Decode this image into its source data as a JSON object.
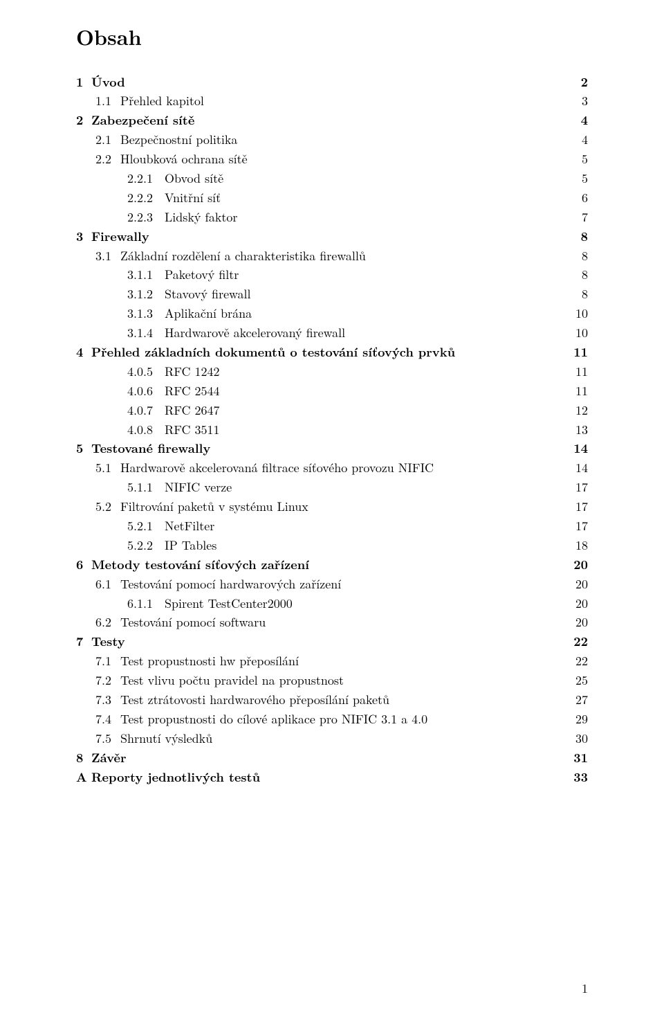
{
  "title": "Obsah",
  "footer_page": "1",
  "entries": [
    {
      "level": 0,
      "num": "1",
      "label": "Úvod",
      "page": "2",
      "bold": true
    },
    {
      "level": 1,
      "num": "1.1",
      "label": "Přehled kapitol",
      "page": "3",
      "bold": false
    },
    {
      "level": 0,
      "num": "2",
      "label": "Zabezpečení sítě",
      "page": "4",
      "bold": true
    },
    {
      "level": 1,
      "num": "2.1",
      "label": "Bezpečnostní politika",
      "page": "4",
      "bold": false
    },
    {
      "level": 1,
      "num": "2.2",
      "label": "Hloubková ochrana sítě",
      "page": "5",
      "bold": false
    },
    {
      "level": 2,
      "num": "2.2.1",
      "label": "Obvod sítě",
      "page": "5",
      "bold": false
    },
    {
      "level": 2,
      "num": "2.2.2",
      "label": "Vnitřní síť",
      "page": "6",
      "bold": false
    },
    {
      "level": 2,
      "num": "2.2.3",
      "label": "Lidský faktor",
      "page": "7",
      "bold": false
    },
    {
      "level": 0,
      "num": "3",
      "label": "Firewally",
      "page": "8",
      "bold": true
    },
    {
      "level": 1,
      "num": "3.1",
      "label": "Základní rozdělení a charakteristika firewallů",
      "page": "8",
      "bold": false
    },
    {
      "level": 2,
      "num": "3.1.1",
      "label": "Paketový filtr",
      "page": "8",
      "bold": false
    },
    {
      "level": 2,
      "num": "3.1.2",
      "label": "Stavový firewall",
      "page": "8",
      "bold": false
    },
    {
      "level": 2,
      "num": "3.1.3",
      "label": "Aplikační brána",
      "page": "10",
      "bold": false
    },
    {
      "level": 2,
      "num": "3.1.4",
      "label": "Hardwarově akcelerovaný firewall",
      "page": "10",
      "bold": false
    },
    {
      "level": 0,
      "num": "4",
      "label": "Přehled základních dokumentů o testování síťových prvků",
      "page": "11",
      "bold": true
    },
    {
      "level": 2,
      "num": "4.0.5",
      "label": "RFC 1242",
      "page": "11",
      "bold": false
    },
    {
      "level": 2,
      "num": "4.0.6",
      "label": "RFC 2544",
      "page": "11",
      "bold": false
    },
    {
      "level": 2,
      "num": "4.0.7",
      "label": "RFC 2647",
      "page": "12",
      "bold": false
    },
    {
      "level": 2,
      "num": "4.0.8",
      "label": "RFC 3511",
      "page": "13",
      "bold": false
    },
    {
      "level": 0,
      "num": "5",
      "label": "Testované firewally",
      "page": "14",
      "bold": true
    },
    {
      "level": 1,
      "num": "5.1",
      "label": "Hardwarově akcelerovaná filtrace síťového provozu NIFIC",
      "page": "14",
      "bold": false
    },
    {
      "level": 2,
      "num": "5.1.1",
      "label": "NIFIC verze",
      "page": "17",
      "bold": false
    },
    {
      "level": 1,
      "num": "5.2",
      "label": "Filtrování paketů v systému Linux",
      "page": "17",
      "bold": false
    },
    {
      "level": 2,
      "num": "5.2.1",
      "label": "NetFilter",
      "page": "17",
      "bold": false
    },
    {
      "level": 2,
      "num": "5.2.2",
      "label": "IP Tables",
      "page": "18",
      "bold": false
    },
    {
      "level": 0,
      "num": "6",
      "label": "Metody testování síťových zařízení",
      "page": "20",
      "bold": true
    },
    {
      "level": 1,
      "num": "6.1",
      "label": "Testování pomocí hardwarových zařízení",
      "page": "20",
      "bold": false
    },
    {
      "level": 2,
      "num": "6.1.1",
      "label": "Spirent TestCenter2000",
      "page": "20",
      "bold": false
    },
    {
      "level": 1,
      "num": "6.2",
      "label": "Testování pomocí softwaru",
      "page": "20",
      "bold": false
    },
    {
      "level": 0,
      "num": "7",
      "label": "Testy",
      "page": "22",
      "bold": true
    },
    {
      "level": 1,
      "num": "7.1",
      "label": "Test propustnosti hw přeposílání",
      "page": "22",
      "bold": false
    },
    {
      "level": 1,
      "num": "7.2",
      "label": "Test vlivu počtu pravidel na propustnost",
      "page": "25",
      "bold": false
    },
    {
      "level": 1,
      "num": "7.3",
      "label": "Test ztrátovosti hardwarového přeposílání paketů",
      "page": "27",
      "bold": false
    },
    {
      "level": 1,
      "num": "7.4",
      "label": "Test propustnosti do cílové aplikace pro NIFIC 3.1 a 4.0",
      "page": "29",
      "bold": false
    },
    {
      "level": 1,
      "num": "7.5",
      "label": "Shrnutí výsledků",
      "page": "30",
      "bold": false
    },
    {
      "level": 0,
      "num": "8",
      "label": "Závěr",
      "page": "31",
      "bold": true
    },
    {
      "level": 0,
      "num": "A",
      "label": "Reporty jednotlivých testů",
      "page": "33",
      "bold": true
    }
  ]
}
